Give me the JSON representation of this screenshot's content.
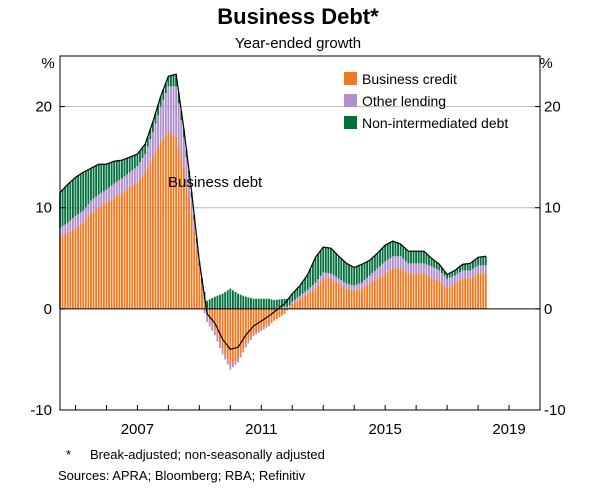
{
  "chart_data": {
    "type": "bar",
    "title": "Business Debt*",
    "subtitle": "Year-ended growth",
    "y_unit_left": "%",
    "y_unit_right": "%",
    "ylim": [
      -10,
      25
    ],
    "yticks": [
      -10,
      0,
      10,
      20
    ],
    "y_tick_labels": [
      "-10",
      "0",
      "10",
      "20"
    ],
    "xlim": [
      2004.5,
      2020.0
    ],
    "x_tick_labels": [
      {
        "label": "2007",
        "x": 2007.0
      },
      {
        "label": "2011",
        "x": 2011.0
      },
      {
        "label": "2015",
        "x": 2015.0
      },
      {
        "label": "2019",
        "x": 2019.0
      }
    ],
    "grid": true,
    "legend_position": "top-right",
    "annotation": "Business debt",
    "series": [
      {
        "name": "Business credit",
        "color": "#f47920"
      },
      {
        "name": "Other lending",
        "color": "#b18fcf"
      },
      {
        "name": "Non-intermediated debt",
        "color": "#00703c"
      }
    ],
    "total_series": {
      "name": "Business debt",
      "color": "#000000"
    },
    "x_start": 2004.5,
    "x_step": 0.25,
    "components": [
      [
        7.0,
        1.0,
        3.5
      ],
      [
        7.5,
        1.0,
        3.8
      ],
      [
        8.0,
        1.2,
        3.8
      ],
      [
        8.5,
        1.2,
        3.8
      ],
      [
        9.5,
        1.2,
        3.2
      ],
      [
        10.0,
        1.3,
        3.0
      ],
      [
        10.5,
        1.3,
        2.5
      ],
      [
        11.0,
        1.4,
        2.2
      ],
      [
        11.5,
        1.4,
        1.8
      ],
      [
        12.0,
        1.5,
        1.5
      ],
      [
        12.5,
        1.6,
        1.2
      ],
      [
        13.5,
        1.8,
        1.0
      ],
      [
        15.0,
        2.5,
        1.0
      ],
      [
        16.5,
        3.5,
        1.0
      ],
      [
        17.5,
        4.5,
        1.0
      ],
      [
        17.0,
        5.0,
        1.2
      ],
      [
        14.0,
        3.0,
        0.8
      ],
      [
        9.5,
        1.5,
        0.6
      ],
      [
        4.0,
        0.3,
        0.4
      ],
      [
        -0.5,
        -0.8,
        0.8
      ],
      [
        -2.0,
        -0.6,
        1.2
      ],
      [
        -4.0,
        -0.5,
        1.5
      ],
      [
        -5.5,
        -0.5,
        2.0
      ],
      [
        -5.0,
        -0.3,
        1.5
      ],
      [
        -3.5,
        -0.3,
        1.2
      ],
      [
        -2.5,
        -0.2,
        1.0
      ],
      [
        -2.0,
        -0.2,
        1.0
      ],
      [
        -1.5,
        -0.2,
        1.0
      ],
      [
        -1.0,
        0.1,
        0.8
      ],
      [
        -0.5,
        0.2,
        0.8
      ],
      [
        0.5,
        0.2,
        0.8
      ],
      [
        1.0,
        0.3,
        1.0
      ],
      [
        1.5,
        0.4,
        1.5
      ],
      [
        2.0,
        0.6,
        2.5
      ],
      [
        3.0,
        0.6,
        2.5
      ],
      [
        3.0,
        0.5,
        2.5
      ],
      [
        2.5,
        0.5,
        2.2
      ],
      [
        2.0,
        0.5,
        2.0
      ],
      [
        1.8,
        0.5,
        1.8
      ],
      [
        2.0,
        0.6,
        1.8
      ],
      [
        2.5,
        0.8,
        1.5
      ],
      [
        3.0,
        1.0,
        1.5
      ],
      [
        3.5,
        1.2,
        1.6
      ],
      [
        4.0,
        1.2,
        1.5
      ],
      [
        4.0,
        1.2,
        1.2
      ],
      [
        3.5,
        1.0,
        1.2
      ],
      [
        3.5,
        1.0,
        1.2
      ],
      [
        3.5,
        1.0,
        1.2
      ],
      [
        3.0,
        1.2,
        0.8
      ],
      [
        2.8,
        1.0,
        0.6
      ],
      [
        2.0,
        1.0,
        0.4
      ],
      [
        2.5,
        0.8,
        0.5
      ],
      [
        3.0,
        0.8,
        0.6
      ],
      [
        3.0,
        0.8,
        0.7
      ],
      [
        3.5,
        0.8,
        0.8
      ],
      [
        3.5,
        0.8,
        0.9
      ]
    ],
    "data_note": "each components row is [Business credit, Other lending, Non-intermediated debt] in percentage points for successive quarters from x_start; Business debt = sum"
  },
  "footnotes": [
    {
      "symbol": "*",
      "text": "Break-adjusted; non-seasonally adjusted"
    },
    {
      "symbol": "",
      "text": "Sources:   APRA; Bloomberg; RBA; Refinitiv"
    }
  ]
}
